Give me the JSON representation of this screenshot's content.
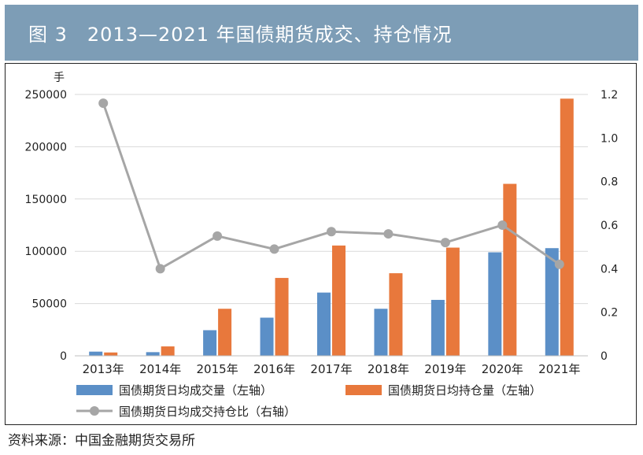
{
  "header": {
    "title": "图 3　2013—2021 年国债期货成交、持仓情况"
  },
  "chart_data": {
    "type": "bar",
    "title": "2013—2021 年国债期货成交、持仓情况",
    "categories": [
      "2013年",
      "2014年",
      "2015年",
      "2016年",
      "2017年",
      "2018年",
      "2019年",
      "2020年",
      "2021年"
    ],
    "series": [
      {
        "name": "国债期货日均成交量（左轴）",
        "kind": "bar",
        "axis": "left",
        "color": "#5b8fc7",
        "values": [
          4000,
          3500,
          24500,
          36500,
          60500,
          45000,
          53500,
          99000,
          103000
        ]
      },
      {
        "name": "国债期货日均持仓量（左轴）",
        "kind": "bar",
        "axis": "left",
        "color": "#e8783c",
        "values": [
          3200,
          9000,
          45000,
          74500,
          105500,
          79000,
          103500,
          164500,
          246000
        ]
      },
      {
        "name": "国债期货日均成交持仓比（右轴）",
        "kind": "line",
        "axis": "right",
        "color": "#a6a6a6",
        "values": [
          1.16,
          0.4,
          0.55,
          0.49,
          0.57,
          0.56,
          0.52,
          0.6,
          0.42
        ]
      }
    ],
    "y_left": {
      "unit": "手",
      "min": 0,
      "max": 250000,
      "ticks": [
        "0",
        "50000",
        "100000",
        "150000",
        "200000",
        "250000"
      ]
    },
    "y_right": {
      "min": 0,
      "max": 1.2,
      "ticks": [
        "0",
        "0.2",
        "0.4",
        "0.6",
        "0.8",
        "1.0",
        "1.2"
      ]
    },
    "legend_placement": "bottom",
    "grid": true
  },
  "source": "资料来源：中国金融期货交易所"
}
